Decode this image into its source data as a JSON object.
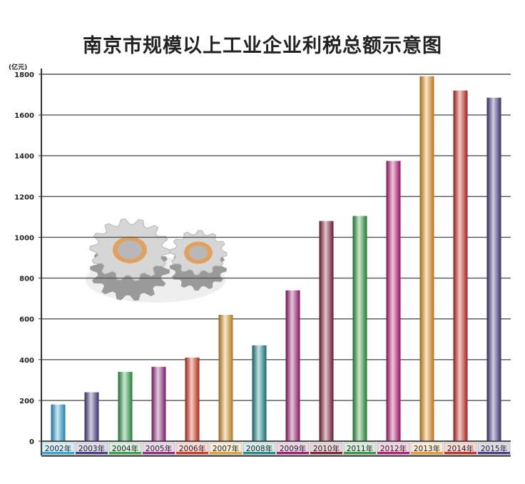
{
  "title": "南京市规模以上工业企业利税总额示意图",
  "chart_data": {
    "type": "bar",
    "title": "南京市规模以上工业企业利税总额示意图",
    "unit_label": "(亿元)",
    "xlabel": "",
    "ylabel": "",
    "ylim": [
      0,
      1800
    ],
    "yticks": [
      0,
      200,
      400,
      600,
      800,
      1000,
      1200,
      1400,
      1600,
      1800
    ],
    "grid": true,
    "categories": [
      "2002年",
      "2003年",
      "2004年",
      "2005年",
      "2006年",
      "2007年",
      "2008年",
      "2009年",
      "2010年",
      "2011年",
      "2012年",
      "2013年",
      "2014年",
      "2015年"
    ],
    "values": [
      180,
      240,
      340,
      365,
      410,
      620,
      470,
      740,
      1080,
      1105,
      1375,
      1790,
      1720,
      1685
    ],
    "bar_colors": [
      "#29a9e0",
      "#4a3f8f",
      "#2fa84f",
      "#9a2b8c",
      "#e2351f",
      "#e8a02a",
      "#1a8f92",
      "#a8197a",
      "#8c1f3c",
      "#2e9e3e",
      "#c2187b",
      "#f39a22",
      "#d82a20",
      "#4c3c8c"
    ]
  }
}
